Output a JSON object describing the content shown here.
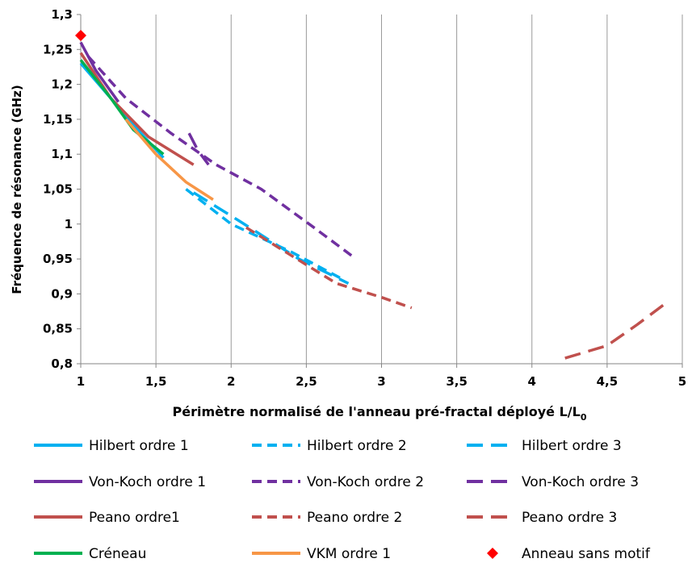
{
  "chart_data": {
    "type": "line",
    "title": "",
    "xlabel": "Périmètre normalisé de l'anneau pré-fractal déployé  L/L",
    "xlabel_subscript": "0",
    "ylabel": "Fréquence de résonance (GHz)",
    "xlim": [
      1,
      5
    ],
    "ylim": [
      0.8,
      1.3
    ],
    "x_ticks": [
      1,
      1.5,
      2,
      2.5,
      3,
      3.5,
      4,
      4.5,
      5
    ],
    "x_tick_labels": [
      "1",
      "1,5",
      "2",
      "2,5",
      "3",
      "3,5",
      "4",
      "4,5",
      "5"
    ],
    "y_ticks": [
      0.8,
      0.85,
      0.9,
      0.95,
      1,
      1.05,
      1.1,
      1.15,
      1.2,
      1.25,
      1.3
    ],
    "y_tick_labels": [
      "0,8",
      "0,85",
      "0,9",
      "0,95",
      "1",
      "1,05",
      "1,1",
      "1,15",
      "1,2",
      "1,25",
      "1,3"
    ],
    "grid": "vertical",
    "legend_position": "bottom",
    "series": [
      {
        "name": "Hilbert ordre 1",
        "color": "#00b0f0",
        "style": "solid",
        "x": [
          1,
          1.2,
          1.4,
          1.55
        ],
        "y": [
          1.23,
          1.18,
          1.13,
          1.095
        ]
      },
      {
        "name": "Hilbert ordre 2",
        "color": "#00b0f0",
        "style": "dashed",
        "x": [
          1.7,
          2,
          2.4,
          2.75
        ],
        "y": [
          1.05,
          1.0,
          0.96,
          0.92
        ]
      },
      {
        "name": "Hilbert ordre 3",
        "color": "#00b0f0",
        "style": "longdash",
        "x": [
          1.75,
          2.05,
          2.45,
          2.78
        ],
        "y": [
          1.045,
          1.005,
          0.95,
          0.915
        ]
      },
      {
        "name": "Von-Koch ordre 1",
        "color": "#7030a0",
        "style": "solid",
        "x": [
          1,
          1.1,
          1.25
        ],
        "y": [
          1.26,
          1.22,
          1.175
        ]
      },
      {
        "name": "Von-Koch ordre 2",
        "color": "#7030a0",
        "style": "dashed",
        "x": [
          1.05,
          1.3,
          1.6,
          1.9,
          2.2,
          2.55,
          2.8
        ],
        "y": [
          1.24,
          1.18,
          1.13,
          1.085,
          1.05,
          0.995,
          0.955
        ]
      },
      {
        "name": "Von-Koch ordre 3",
        "color": "#7030a0",
        "style": "longdash",
        "x": [
          1.72,
          1.78,
          1.85
        ],
        "y": [
          1.13,
          1.105,
          1.085
        ]
      },
      {
        "name": "Peano ordre1",
        "color": "#c0504d",
        "style": "solid",
        "x": [
          1,
          1.2,
          1.45,
          1.75
        ],
        "y": [
          1.245,
          1.18,
          1.125,
          1.085
        ]
      },
      {
        "name": "Peano ordre 2",
        "color": "#c0504d",
        "style": "dashed",
        "x": [
          2.1,
          2.4,
          2.7,
          3.0,
          3.2
        ],
        "y": [
          0.995,
          0.955,
          0.915,
          0.895,
          0.88
        ]
      },
      {
        "name": "Peano ordre 3",
        "color": "#c0504d",
        "style": "longdash",
        "x": [
          4.22,
          4.5,
          4.7,
          4.88
        ],
        "y": [
          0.808,
          0.826,
          0.856,
          0.885
        ]
      },
      {
        "name": "Créneau",
        "color": "#00b050",
        "style": "solid",
        "x": [
          1,
          1.2,
          1.35,
          1.55
        ],
        "y": [
          1.235,
          1.18,
          1.135,
          1.1
        ]
      },
      {
        "name": "VKM ordre 1",
        "color": "#f79646",
        "style": "solid",
        "x": [
          1.3,
          1.5,
          1.7,
          1.88
        ],
        "y": [
          1.15,
          1.1,
          1.06,
          1.035
        ]
      },
      {
        "name": "Anneau sans motif",
        "color": "#ff0000",
        "style": "marker",
        "x": [
          1
        ],
        "y": [
          1.27
        ]
      }
    ]
  }
}
